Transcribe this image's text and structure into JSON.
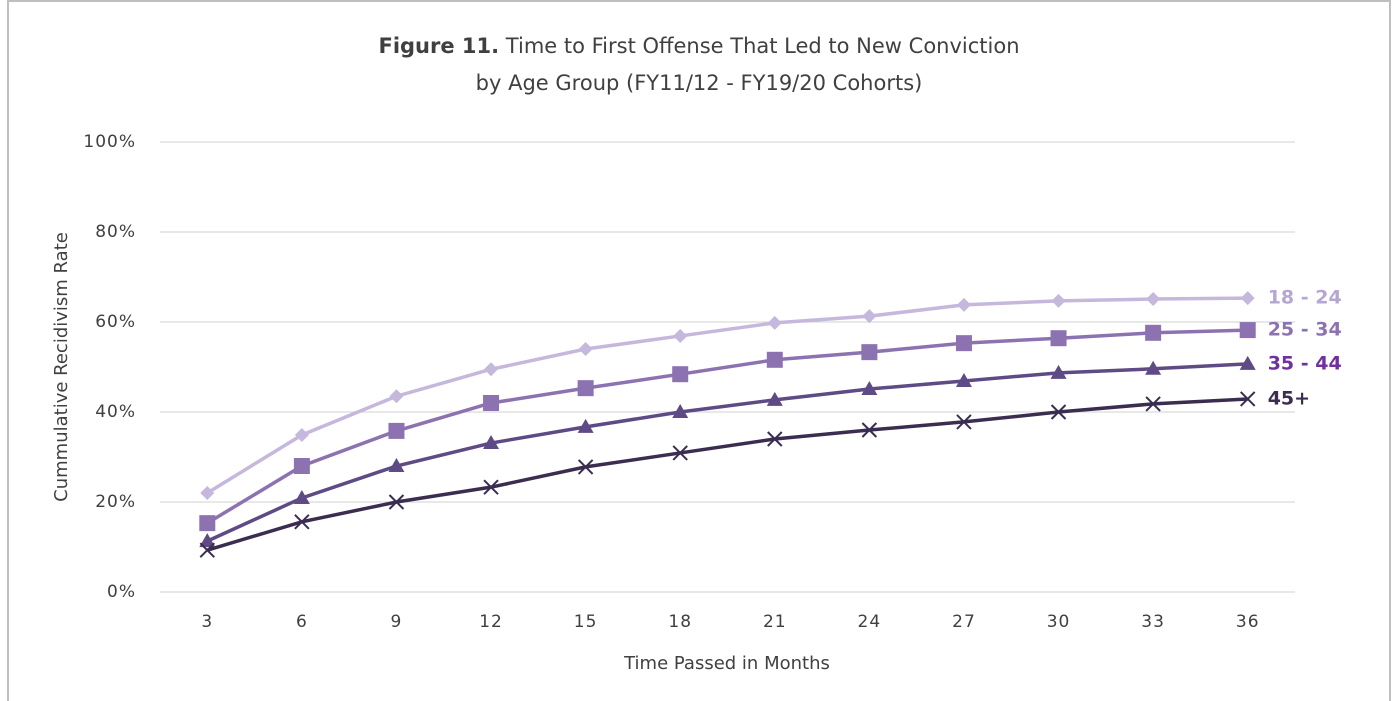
{
  "chart_data": {
    "type": "line",
    "title_label": "Figure 11.",
    "title": "Time to First Offense That Led to New Conviction",
    "subtitle": "by Age Group (FY11/12 - FY19/20 Cohorts)",
    "x_label": "Time Passed in Months",
    "y_label": "Cummulative Recidivism Rate",
    "categories": [
      "3",
      "6",
      "9",
      "12",
      "15",
      "18",
      "21",
      "24",
      "27",
      "30",
      "33",
      "36"
    ],
    "ylim": [
      0,
      100
    ],
    "yticks": [
      {
        "value": 0,
        "label": "0%"
      },
      {
        "value": 20,
        "label": "20%"
      },
      {
        "value": 40,
        "label": "40%"
      },
      {
        "value": 60,
        "label": "60%"
      },
      {
        "value": 80,
        "label": "80%"
      },
      {
        "value": 100,
        "label": "100%"
      }
    ],
    "grid": true,
    "series": [
      {
        "name": "18 - 24",
        "color": "#c5b8dc",
        "label_color": "#b6a6d2",
        "marker": "diamond",
        "values": [
          22,
          34.9,
          43.5,
          49.5,
          54,
          56.9,
          59.8,
          61.3,
          63.8,
          64.7,
          65.1,
          65.3
        ]
      },
      {
        "name": "25 - 34",
        "color": "#8c72b0",
        "label_color": "#8c72b0",
        "marker": "square",
        "values": [
          15.3,
          28,
          35.8,
          42,
          45.3,
          48.4,
          51.6,
          53.3,
          55.3,
          56.4,
          57.6,
          58.2
        ]
      },
      {
        "name": "35 - 44",
        "color": "#5e4a85",
        "label_color": "#7030a0",
        "marker": "triangle",
        "values": [
          11.3,
          20.9,
          28,
          33.1,
          36.7,
          40,
          42.7,
          45.1,
          46.9,
          48.7,
          49.6,
          50.7
        ]
      },
      {
        "name": "45+",
        "color": "#3b2d50",
        "label_color": "#3b2d50",
        "marker": "x",
        "values": [
          9.3,
          15.6,
          20,
          23.3,
          27.8,
          30.9,
          34,
          36,
          37.8,
          40,
          41.8,
          42.9
        ]
      }
    ]
  }
}
